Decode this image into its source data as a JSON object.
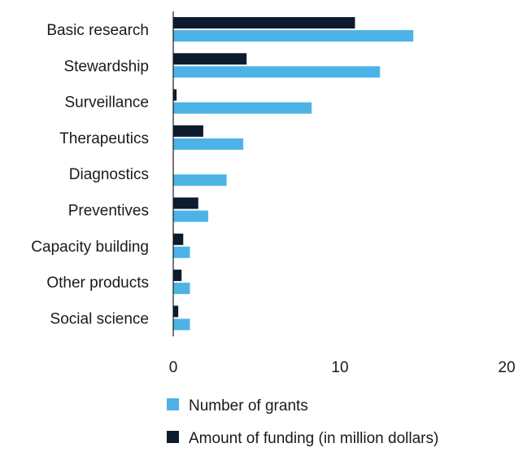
{
  "chart_data": {
    "type": "bar",
    "orientation": "horizontal",
    "categories": [
      "Basic research",
      "Stewardship",
      "Surveillance",
      "Therapeutics",
      "Diagnostics",
      "Preventives",
      "Capacity building",
      "Other products",
      "Social science"
    ],
    "series": [
      {
        "name": "Number of grants",
        "color": "#4db3e6",
        "values": [
          14.4,
          12.4,
          8.3,
          4.2,
          3.2,
          2.1,
          1.0,
          1.0,
          1.0
        ]
      },
      {
        "name": "Amount of funding (in million dollars)",
        "color": "#0d1b2e",
        "values": [
          10.9,
          4.4,
          0.2,
          1.8,
          0,
          1.5,
          0.6,
          0.5,
          0.3
        ]
      }
    ],
    "x_ticks": [
      "0",
      "10",
      "20"
    ],
    "xlim": [
      0,
      20
    ],
    "grid": false,
    "legend_position": "bottom",
    "title": "",
    "xlabel": "",
    "ylabel": ""
  }
}
